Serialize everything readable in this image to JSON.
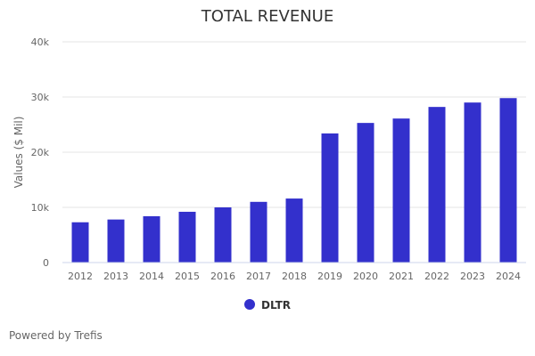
{
  "chart_data": {
    "type": "bar",
    "title": "TOTAL REVENUE",
    "xlabel": "",
    "ylabel": "Values ($ Mil)",
    "categories": [
      "2012",
      "2013",
      "2014",
      "2015",
      "2016",
      "2017",
      "2018",
      "2019",
      "2020",
      "2021",
      "2022",
      "2023",
      "2024"
    ],
    "series": [
      {
        "name": "DLTR",
        "color": "#3330cc",
        "values": [
          7300,
          7800,
          8400,
          9200,
          10000,
          11000,
          11600,
          23400,
          25300,
          26100,
          28200,
          29000,
          29800
        ]
      }
    ],
    "ylim": [
      0,
      40000
    ],
    "yticks": [
      0,
      10000,
      20000,
      30000,
      40000
    ],
    "ytick_labels": [
      "0",
      "10k",
      "20k",
      "30k",
      "40k"
    ],
    "grid": true,
    "legend": {
      "position": "bottom-center",
      "entries": [
        "DLTR"
      ]
    }
  },
  "footer": {
    "credit": "Powered by Trefis"
  }
}
